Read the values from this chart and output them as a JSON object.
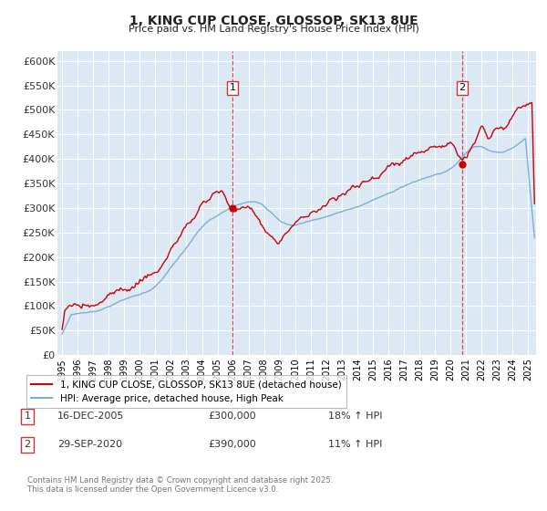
{
  "title": "1, KING CUP CLOSE, GLOSSOP, SK13 8UE",
  "subtitle": "Price paid vs. HM Land Registry's House Price Index (HPI)",
  "ylim": [
    0,
    620000
  ],
  "yticks": [
    0,
    50000,
    100000,
    150000,
    200000,
    250000,
    300000,
    350000,
    400000,
    450000,
    500000,
    550000,
    600000
  ],
  "xlim_start": 1994.7,
  "xlim_end": 2025.5,
  "bg_color": "#dce9f5",
  "grid_color": "#ffffff",
  "sale1_x": 2005.958,
  "sale1_y": 300000,
  "sale1_label": "1",
  "sale2_x": 2020.75,
  "sale2_y": 390000,
  "sale2_label": "2",
  "legend_line1": "1, KING CUP CLOSE, GLOSSOP, SK13 8UE (detached house)",
  "legend_line2": "HPI: Average price, detached house, High Peak",
  "annotation1_date": "16-DEC-2005",
  "annotation1_price": "£300,000",
  "annotation1_hpi": "18% ↑ HPI",
  "annotation2_date": "29-SEP-2020",
  "annotation2_price": "£390,000",
  "annotation2_hpi": "11% ↑ HPI",
  "footer": "Contains HM Land Registry data © Crown copyright and database right 2025.\nThis data is licensed under the Open Government Licence v3.0.",
  "red_color": "#cc0000",
  "blue_color": "#7ab0d4",
  "title_color": "#222222",
  "label_color": "#333333",
  "footer_color": "#777777"
}
